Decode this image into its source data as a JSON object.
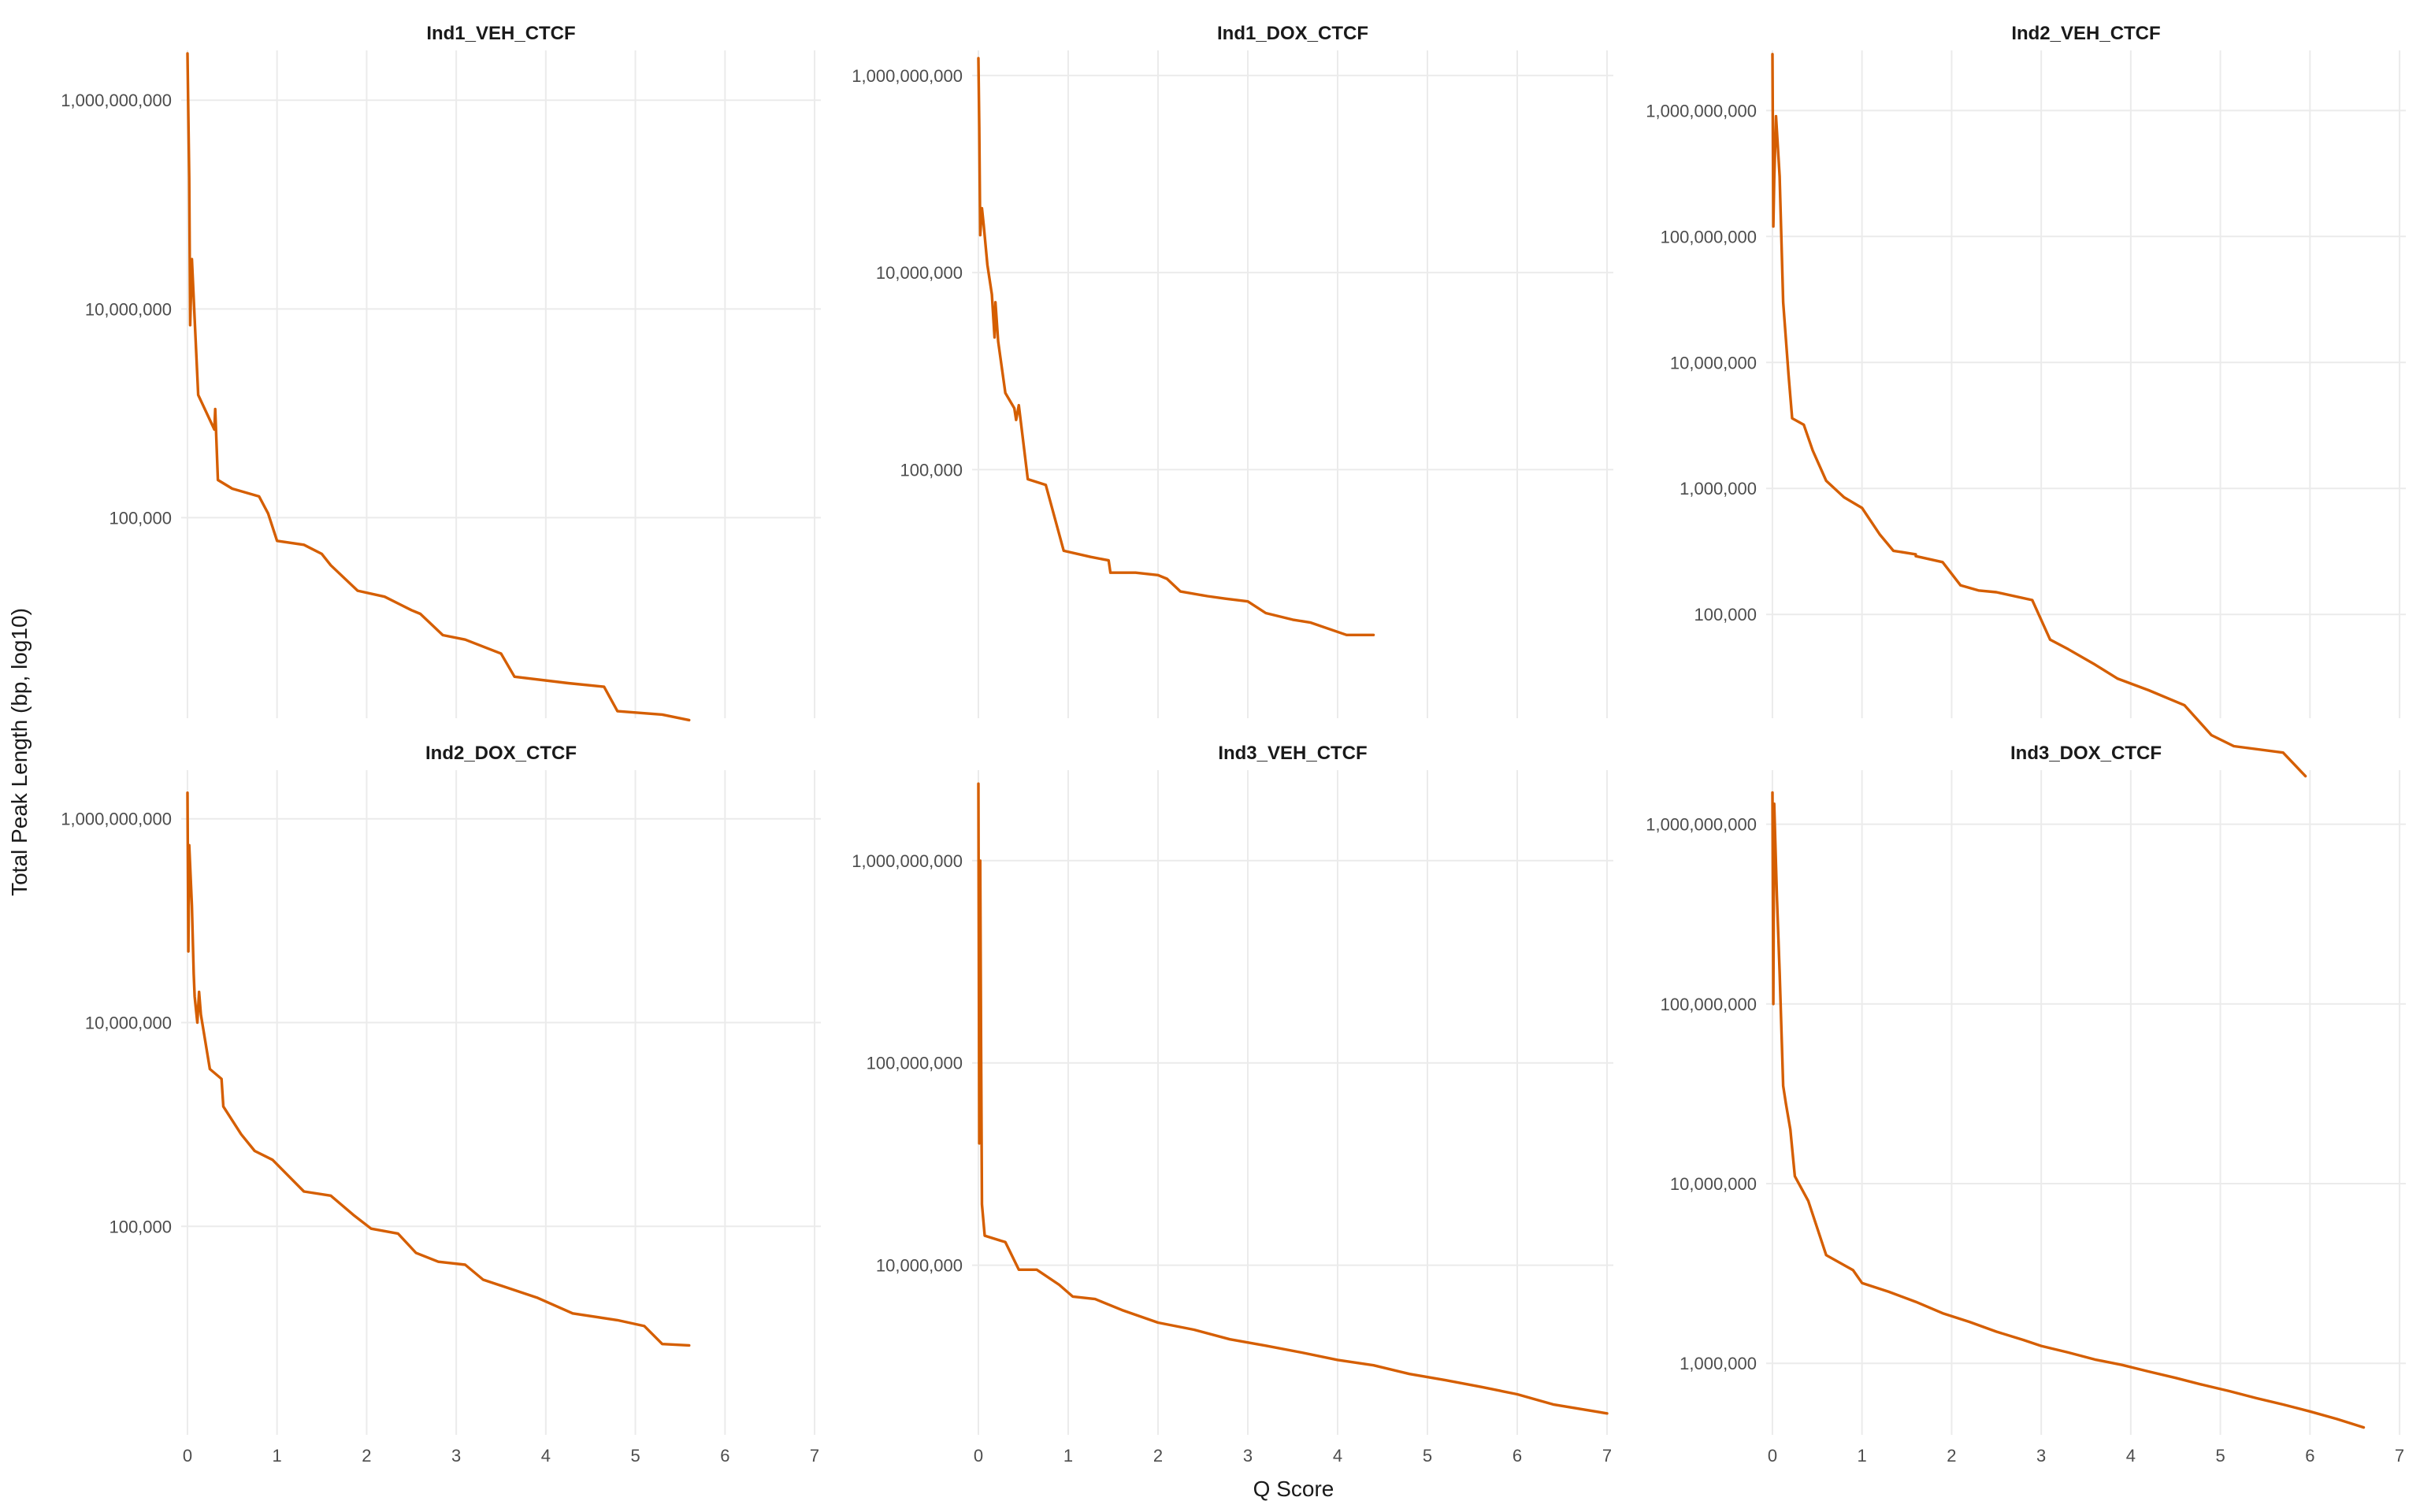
{
  "colors": {
    "line": "#D55E00",
    "grid": "#EBEBEB",
    "tick_text": "#4D4D4D"
  },
  "chart_data": {
    "type": "line",
    "layout": "facet-grid-2x3",
    "xlabel": "Q Score",
    "ylabel": "Total Peak Length (bp, log10)",
    "yscale": "log10",
    "grid": true,
    "legend": "none",
    "xlim": [
      0,
      7
    ],
    "xticks": [
      0,
      1,
      2,
      3,
      4,
      5,
      6,
      7
    ],
    "panels": [
      {
        "title": "Ind1_VEH_CTCF",
        "ylim": [
          1200,
          3000000000
        ],
        "yticks": [
          100000,
          10000000,
          1000000000
        ],
        "ytick_labels": [
          "100,000",
          "10,000,000",
          "1,000,000,000"
        ],
        "x": [
          0,
          0.01,
          0.02,
          0.03,
          0.05,
          0.08,
          0.12,
          0.3,
          0.31,
          0.34,
          0.5,
          0.8,
          0.9,
          1.0,
          1.3,
          1.5,
          1.6,
          1.9,
          2.2,
          2.5,
          2.6,
          2.85,
          3.1,
          3.5,
          3.65,
          4.25,
          4.65,
          4.8,
          5.3,
          5.6
        ],
        "y": [
          2800000000,
          700000000,
          180000000,
          7000000,
          30000000,
          8000000,
          1500000,
          700000,
          1100000,
          230000,
          190000,
          160000,
          110000,
          60000,
          55000,
          45000,
          35000,
          20000,
          17500,
          13000,
          12000,
          7500,
          6800,
          5000,
          3000,
          2600,
          2400,
          1400,
          1300,
          1150
        ]
      },
      {
        "title": "Ind1_DOX_CTCF",
        "ylim": [
          300,
          1800000000
        ],
        "yticks": [
          100000,
          10000000,
          1000000000
        ],
        "ytick_labels": [
          "100,000",
          "10,000,000",
          "1,000,000,000"
        ],
        "x": [
          0,
          0.01,
          0.02,
          0.04,
          0.06,
          0.1,
          0.15,
          0.18,
          0.19,
          0.22,
          0.3,
          0.4,
          0.42,
          0.45,
          0.55,
          0.75,
          0.95,
          1.25,
          1.45,
          1.47,
          1.75,
          2.0,
          2.1,
          2.25,
          2.55,
          2.75,
          3.0,
          3.2,
          3.5,
          3.7,
          4.1,
          4.4
        ],
        "y": [
          1500000000,
          300000000,
          24000000,
          45000000,
          30000000,
          12000000,
          6000000,
          2200000,
          5000000,
          2000000,
          600000,
          420000,
          320000,
          450000,
          80000,
          70000,
          15000,
          13000,
          12000,
          9000,
          9000,
          8500,
          7800,
          5800,
          5200,
          4900,
          4600,
          3500,
          3000,
          2800,
          2100,
          2100
        ]
      },
      {
        "title": "Ind2_VEH_CTCF",
        "ylim": [
          15000,
          3000000000
        ],
        "yticks": [
          100000,
          1000000,
          10000000,
          100000000,
          1000000000
        ],
        "ytick_labels": [
          "100,000",
          "1,000,000",
          "10,000,000",
          "100,000,000",
          "1,000,000,000"
        ],
        "x": [
          0,
          0.01,
          0.02,
          0.04,
          0.08,
          0.12,
          0.18,
          0.22,
          0.35,
          0.45,
          0.6,
          0.8,
          1.0,
          1.2,
          1.35,
          1.6,
          1.6,
          1.9,
          2.1,
          2.3,
          2.5,
          2.9,
          3.1,
          3.3,
          3.6,
          3.85,
          4.2,
          4.6,
          4.9,
          5.15,
          5.7,
          5.95
        ],
        "y": [
          2800000000,
          120000000,
          280000000,
          900000000,
          300000000,
          30000000,
          8000000,
          3600000,
          3200000,
          2000000,
          1150000,
          850000,
          700000,
          430000,
          320000,
          300000,
          290000,
          260000,
          170000,
          155000,
          150000,
          130000,
          63000,
          53000,
          40000,
          31000,
          25000,
          19000,
          11000,
          9000,
          8000,
          5200
        ]
      },
      {
        "title": "Ind2_DOX_CTCF",
        "ylim": [
          900,
          3000000000
        ],
        "yticks": [
          100000,
          10000000,
          1000000000
        ],
        "ytick_labels": [
          "100,000",
          "10,000,000",
          "1,000,000,000"
        ],
        "x": [
          0,
          0.01,
          0.02,
          0.05,
          0.07,
          0.08,
          0.11,
          0.13,
          0.15,
          0.25,
          0.38,
          0.4,
          0.6,
          0.75,
          0.95,
          1.3,
          1.6,
          1.85,
          2.05,
          2.35,
          2.55,
          2.8,
          3.1,
          3.3,
          3.9,
          4.3,
          4.8,
          5.1,
          5.3,
          5.6
        ],
        "y": [
          1800000000,
          50000000,
          550000000,
          140000000,
          30000000,
          18000000,
          10000000,
          20000000,
          12000000,
          3500000,
          2800000,
          1500000,
          800000,
          550000,
          450000,
          220000,
          200000,
          130000,
          95000,
          85000,
          55000,
          45000,
          42000,
          30000,
          20000,
          14000,
          12000,
          10500,
          7000,
          6800
        ]
      },
      {
        "title": "Ind3_VEH_CTCF",
        "ylim": [
          1450000,
          2800000000
        ],
        "yticks": [
          10000000,
          100000000,
          1000000000
        ],
        "ytick_labels": [
          "10,000,000",
          "100,000,000",
          "1,000,000,000"
        ],
        "x": [
          0,
          0.01,
          0.02,
          0.03,
          0.04,
          0.07,
          0.3,
          0.45,
          0.65,
          0.9,
          1.05,
          1.3,
          1.6,
          2.0,
          2.4,
          2.8,
          3.2,
          3.6,
          4.0,
          4.4,
          4.8,
          5.2,
          5.6,
          6.0,
          6.4,
          7.0
        ],
        "y": [
          2400000000,
          40000000,
          1000000000,
          120000000,
          20000000,
          14000000,
          13000000,
          9500000,
          9500000,
          8000000,
          7000000,
          6800000,
          6000000,
          5200000,
          4800000,
          4300000,
          4000000,
          3700000,
          3400000,
          3200000,
          2900000,
          2700000,
          2500000,
          2300000,
          2050000,
          1850000
        ]
      },
      {
        "title": "Ind3_DOX_CTCF",
        "ylim": [
          400000,
          2000000000
        ],
        "yticks": [
          1000000,
          10000000,
          100000000,
          1000000000
        ],
        "ytick_labels": [
          "1,000,000",
          "10,000,000",
          "100,000,000",
          "1,000,000,000"
        ],
        "x": [
          0,
          0.01,
          0.02,
          0.05,
          0.08,
          0.12,
          0.15,
          0.2,
          0.25,
          0.4,
          0.6,
          0.9,
          1.0,
          1.3,
          1.6,
          1.9,
          2.2,
          2.5,
          2.8,
          3.0,
          3.3,
          3.6,
          3.9,
          4.2,
          4.5,
          4.8,
          5.1,
          5.4,
          5.7,
          6.0,
          6.3,
          6.6
        ],
        "y": [
          1500000000,
          100000000,
          1300000000,
          400000000,
          150000000,
          35000000,
          28000000,
          20000000,
          11000000,
          8000000,
          4000000,
          3300000,
          2800000,
          2500000,
          2200000,
          1900000,
          1700000,
          1500000,
          1350000,
          1250000,
          1150000,
          1050000,
          980000,
          900000,
          830000,
          760000,
          700000,
          640000,
          590000,
          540000,
          490000,
          440000
        ]
      }
    ]
  }
}
